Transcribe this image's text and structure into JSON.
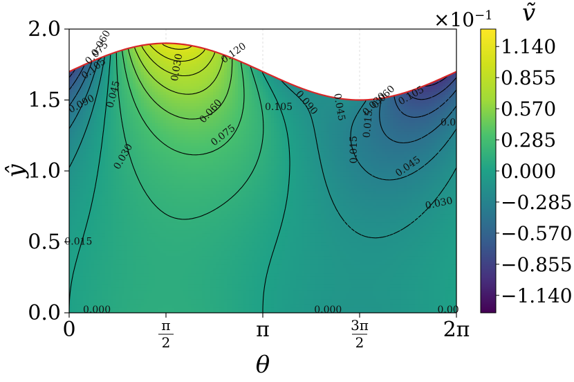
{
  "chart_data": {
    "type": "heatmap",
    "title": "",
    "xlabel": "θ",
    "ylabel": "ŷ",
    "xlim": [
      0,
      6.2832
    ],
    "ylim": [
      0,
      2.0
    ],
    "x_ticks": [
      {
        "value": 0,
        "label": "0"
      },
      {
        "value": 1.5708,
        "numerator": "π",
        "denominator": "2"
      },
      {
        "value": 3.1416,
        "label": "π"
      },
      {
        "value": 4.7124,
        "numerator": "3π",
        "denominator": "2"
      },
      {
        "value": 6.2832,
        "label": "2π"
      }
    ],
    "y_ticks": [
      {
        "value": 0.0,
        "label": "0.0"
      },
      {
        "value": 0.5,
        "label": "0.5"
      },
      {
        "value": 1.0,
        "label": "1.0"
      },
      {
        "value": 1.5,
        "label": "1.5"
      },
      {
        "value": 2.0,
        "label": "2.0"
      }
    ],
    "boundary": {
      "description_formula": "y = 1.7 + 0.2 sin θ",
      "color": "#d62728",
      "mean": 1.7,
      "amplitude": 0.2
    },
    "colormap": "viridis",
    "colorbar": {
      "label": "ṽ",
      "scale_text": "×10",
      "scale_exponent": "−1",
      "vmin": -0.13,
      "vmax": 0.13,
      "ticks": [
        1.14,
        0.855,
        0.57,
        0.285,
        0.0,
        -0.285,
        -0.57,
        -0.855,
        -1.14
      ],
      "tick_labels": [
        "1.140",
        "0.855",
        "0.570",
        "0.285",
        "0.000",
        "−0.285",
        "−0.570",
        "−0.855",
        "−1.140"
      ]
    },
    "contour_levels": [
      -0.105,
      -0.09,
      -0.075,
      -0.06,
      -0.045,
      -0.03,
      -0.015,
      0.0,
      0.015,
      0.03,
      0.045,
      0.06,
      0.075,
      0.09,
      0.105,
      0.12
    ],
    "negative_contours_dashed": true,
    "contour_labels": [
      {
        "text": "0.105",
        "x": 0.4,
        "y": 1.72,
        "angle": -38
      },
      {
        "text": "0.075",
        "x": 0.45,
        "y": 1.83,
        "angle": -45
      },
      {
        "text": "0.060",
        "x": 0.52,
        "y": 1.9,
        "angle": -60
      },
      {
        "text": "0.090",
        "x": 0.2,
        "y": 1.47,
        "angle": -28
      },
      {
        "text": "0.045",
        "x": 0.72,
        "y": 1.54,
        "angle": -75
      },
      {
        "text": "0.030",
        "x": 0.88,
        "y": 1.1,
        "angle": -60
      },
      {
        "text": "0.015",
        "x": 0.15,
        "y": 0.5,
        "angle": 0
      },
      {
        "text": "0.000",
        "x": 0.45,
        "y": 0.02,
        "angle": 0
      },
      {
        "text": "0.030",
        "x": 1.75,
        "y": 1.73,
        "angle": -80
      },
      {
        "text": "0.060",
        "x": 2.3,
        "y": 1.42,
        "angle": -48
      },
      {
        "text": "0.075",
        "x": 2.5,
        "y": 1.25,
        "angle": -38
      },
      {
        "text": "0.120",
        "x": 2.67,
        "y": 1.83,
        "angle": -35
      },
      {
        "text": "0.105",
        "x": 3.4,
        "y": 1.45,
        "angle": 0
      },
      {
        "text": "0.090",
        "x": 3.85,
        "y": 1.48,
        "angle": 50
      },
      {
        "text": "0.045",
        "x": 4.38,
        "y": 1.45,
        "angle": 80
      },
      {
        "text": "0.015",
        "x": 4.62,
        "y": 1.15,
        "angle": -90
      },
      {
        "text": "0.000",
        "x": 4.2,
        "y": 0.02,
        "angle": 0
      },
      {
        "text": "0.015",
        "x": 4.85,
        "y": 1.33,
        "angle": -85
      },
      {
        "text": "0.030",
        "x": 4.95,
        "y": 1.47,
        "angle": -45
      },
      {
        "text": "0.060",
        "x": 5.1,
        "y": 1.52,
        "angle": -45
      },
      {
        "text": "0.105",
        "x": 5.55,
        "y": 1.53,
        "angle": -30
      },
      {
        "text": "0.045",
        "x": 5.5,
        "y": 1.03,
        "angle": -35
      },
      {
        "text": "0.030",
        "x": 6.0,
        "y": 0.77,
        "angle": -12
      },
      {
        "text": "0.0",
        "x": 6.15,
        "y": 1.34,
        "angle": 0
      },
      {
        "text": "0.00",
        "x": 6.15,
        "y": 0.02,
        "angle": 0
      }
    ]
  }
}
